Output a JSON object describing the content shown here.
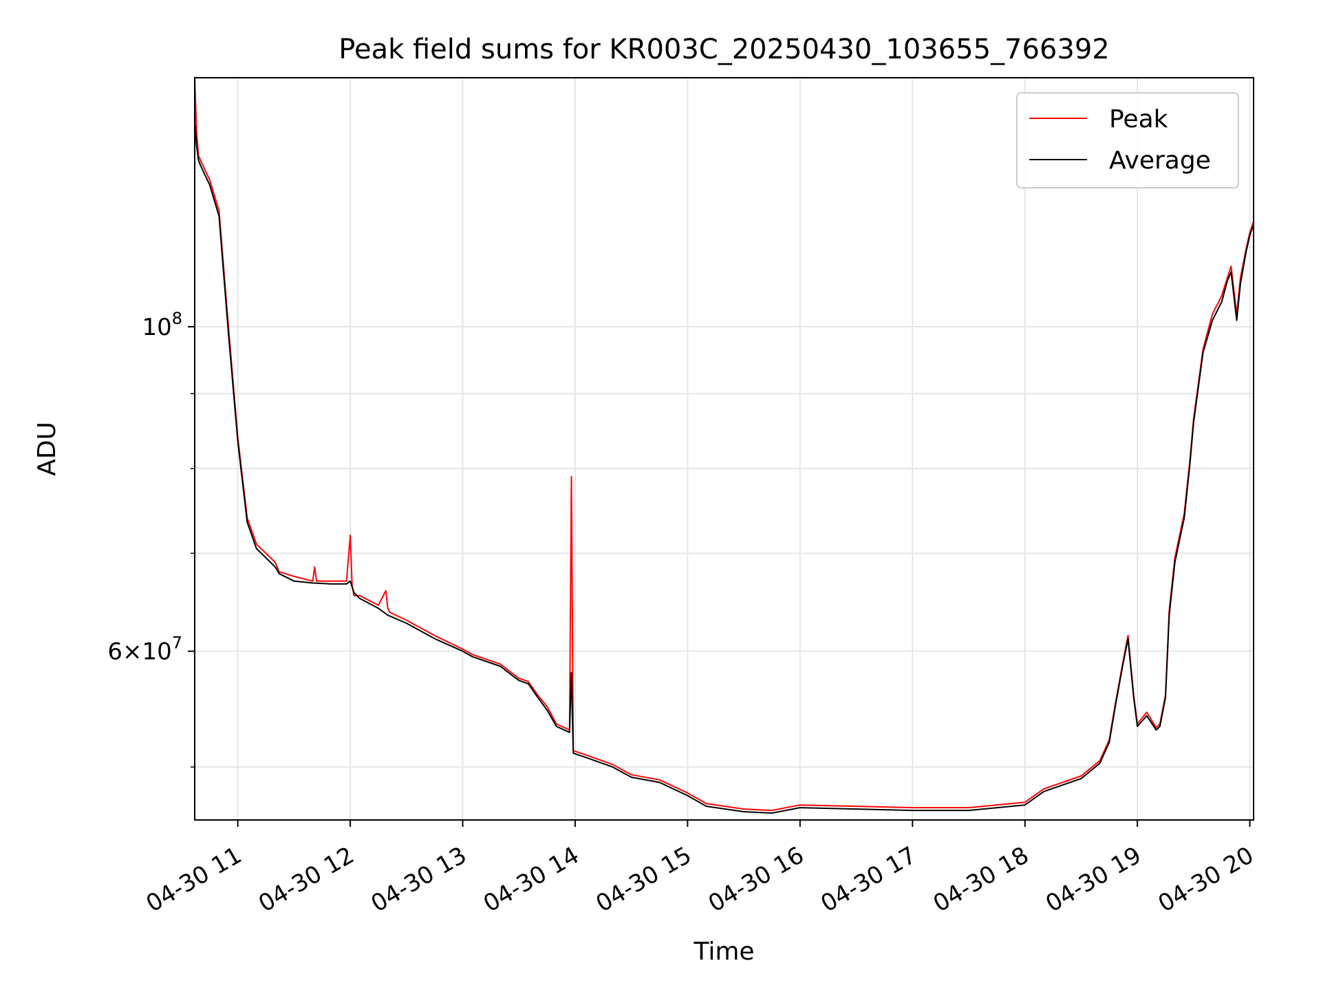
{
  "chart_data": {
    "type": "line",
    "title": "Peak field sums for KR003C_20250430_103655_766392",
    "xlabel": "Time",
    "ylabel": "ADU",
    "y_scale": "log",
    "grid": true,
    "legend_position": "top-right",
    "xlim": [
      "2025-04-30 10:37",
      "2025-04-30 20:02"
    ],
    "ylim": [
      46000000,
      148000000
    ],
    "x_ticks": [
      {
        "value": "2025-04-30 11:00",
        "label": "04-30 11"
      },
      {
        "value": "2025-04-30 12:00",
        "label": "04-30 12"
      },
      {
        "value": "2025-04-30 13:00",
        "label": "04-30 13"
      },
      {
        "value": "2025-04-30 14:00",
        "label": "04-30 14"
      },
      {
        "value": "2025-04-30 15:00",
        "label": "04-30 15"
      },
      {
        "value": "2025-04-30 16:00",
        "label": "04-30 16"
      },
      {
        "value": "2025-04-30 17:00",
        "label": "04-30 17"
      },
      {
        "value": "2025-04-30 18:00",
        "label": "04-30 18"
      },
      {
        "value": "2025-04-30 19:00",
        "label": "04-30 19"
      },
      {
        "value": "2025-04-30 20:00",
        "label": "04-30 20"
      }
    ],
    "y_major_ticks": [
      {
        "value": 100000000,
        "base": "10",
        "exp": "8"
      },
      {
        "value": 60000000,
        "mantissa": "6",
        "base": "10",
        "exp": "7"
      }
    ],
    "y_minor_ticks": [
      50000000,
      70000000,
      80000000,
      90000000
    ],
    "series": [
      {
        "name": "Peak",
        "color": "#ff0000",
        "x": [
          "2025-04-30 10:37",
          "2025-04-30 10:38",
          "2025-04-30 10:39",
          "2025-04-30 10:40",
          "2025-04-30 10:45",
          "2025-04-30 10:50",
          "2025-04-30 10:55",
          "2025-04-30 11:00",
          "2025-04-30 11:05",
          "2025-04-30 11:10",
          "2025-04-30 11:15",
          "2025-04-30 11:20",
          "2025-04-30 11:22",
          "2025-04-30 11:30",
          "2025-04-30 11:40",
          "2025-04-30 11:41",
          "2025-04-30 11:42",
          "2025-04-30 11:50",
          "2025-04-30 11:58",
          "2025-04-30 12:00",
          "2025-04-30 12:01",
          "2025-04-30 12:02",
          "2025-04-30 12:05",
          "2025-04-30 12:15",
          "2025-04-30 12:19",
          "2025-04-30 12:20",
          "2025-04-30 12:21",
          "2025-04-30 12:30",
          "2025-04-30 12:45",
          "2025-04-30 13:00",
          "2025-04-30 13:05",
          "2025-04-30 13:20",
          "2025-04-30 13:30",
          "2025-04-30 13:35",
          "2025-04-30 13:40",
          "2025-04-30 13:45",
          "2025-04-30 13:50",
          "2025-04-30 13:57",
          "2025-04-30 13:58",
          "2025-04-30 13:59",
          "2025-04-30 14:05",
          "2025-04-30 14:20",
          "2025-04-30 14:30",
          "2025-04-30 14:45",
          "2025-04-30 15:00",
          "2025-04-30 15:10",
          "2025-04-30 15:30",
          "2025-04-30 15:45",
          "2025-04-30 16:00",
          "2025-04-30 16:30",
          "2025-04-30 17:00",
          "2025-04-30 17:30",
          "2025-04-30 18:00",
          "2025-04-30 18:10",
          "2025-04-30 18:30",
          "2025-04-30 18:40",
          "2025-04-30 18:45",
          "2025-04-30 18:48",
          "2025-04-30 18:52",
          "2025-04-30 18:55",
          "2025-04-30 18:58",
          "2025-04-30 19:00",
          "2025-04-30 19:05",
          "2025-04-30 19:10",
          "2025-04-30 19:12",
          "2025-04-30 19:15",
          "2025-04-30 19:17",
          "2025-04-30 19:20",
          "2025-04-30 19:23",
          "2025-04-30 19:25",
          "2025-04-30 19:28",
          "2025-04-30 19:30",
          "2025-04-30 19:35",
          "2025-04-30 19:40",
          "2025-04-30 19:45",
          "2025-04-30 19:48",
          "2025-04-30 19:50",
          "2025-04-30 19:53",
          "2025-04-30 19:55",
          "2025-04-30 19:58",
          "2025-04-30 20:00",
          "2025-04-30 20:02"
        ],
        "values": [
          148000000,
          136000000,
          131000000,
          130000000,
          126000000,
          120000000,
          100000000,
          84000000,
          74000000,
          71000000,
          70000000,
          69000000,
          68000000,
          67500000,
          67000000,
          68500000,
          67000000,
          67000000,
          67000000,
          72000000,
          66500000,
          65500000,
          65500000,
          64500000,
          66000000,
          64200000,
          63800000,
          63000000,
          61500000,
          60200000,
          59700000,
          58800000,
          57500000,
          57200000,
          56000000,
          55000000,
          53500000,
          53000000,
          79000000,
          51300000,
          51000000,
          50200000,
          49400000,
          49000000,
          48000000,
          47200000,
          46800000,
          46700000,
          47100000,
          47000000,
          46900000,
          46900000,
          47300000,
          48300000,
          49300000,
          50500000,
          52200000,
          55000000,
          58700000,
          61500000,
          56000000,
          53500000,
          54500000,
          53200000,
          53500000,
          56000000,
          64000000,
          69500000,
          72500000,
          74500000,
          81000000,
          86500000,
          96500000,
          102000000,
          105000000,
          108000000,
          110000000,
          102000000,
          108000000,
          113000000,
          116000000,
          118000000
        ]
      },
      {
        "name": "Average",
        "color": "#000000",
        "x": [
          "2025-04-30 10:37",
          "2025-04-30 10:38",
          "2025-04-30 10:39",
          "2025-04-30 10:40",
          "2025-04-30 10:45",
          "2025-04-30 10:50",
          "2025-04-30 10:55",
          "2025-04-30 11:00",
          "2025-04-30 11:05",
          "2025-04-30 11:10",
          "2025-04-30 11:15",
          "2025-04-30 11:20",
          "2025-04-30 11:22",
          "2025-04-30 11:30",
          "2025-04-30 11:40",
          "2025-04-30 11:50",
          "2025-04-30 11:58",
          "2025-04-30 12:00",
          "2025-04-30 12:02",
          "2025-04-30 12:05",
          "2025-04-30 12:15",
          "2025-04-30 12:20",
          "2025-04-30 12:30",
          "2025-04-30 12:45",
          "2025-04-30 13:00",
          "2025-04-30 13:05",
          "2025-04-30 13:20",
          "2025-04-30 13:30",
          "2025-04-30 13:35",
          "2025-04-30 13:40",
          "2025-04-30 13:45",
          "2025-04-30 13:50",
          "2025-04-30 13:57",
          "2025-04-30 13:58",
          "2025-04-30 13:59",
          "2025-04-30 14:05",
          "2025-04-30 14:20",
          "2025-04-30 14:30",
          "2025-04-30 14:45",
          "2025-04-30 15:00",
          "2025-04-30 15:10",
          "2025-04-30 15:30",
          "2025-04-30 15:45",
          "2025-04-30 16:00",
          "2025-04-30 16:30",
          "2025-04-30 17:00",
          "2025-04-30 17:30",
          "2025-04-30 18:00",
          "2025-04-30 18:10",
          "2025-04-30 18:30",
          "2025-04-30 18:40",
          "2025-04-30 18:45",
          "2025-04-30 18:48",
          "2025-04-30 18:52",
          "2025-04-30 18:55",
          "2025-04-30 18:58",
          "2025-04-30 19:00",
          "2025-04-30 19:05",
          "2025-04-30 19:10",
          "2025-04-30 19:12",
          "2025-04-30 19:15",
          "2025-04-30 19:17",
          "2025-04-30 19:20",
          "2025-04-30 19:23",
          "2025-04-30 19:25",
          "2025-04-30 19:28",
          "2025-04-30 19:30",
          "2025-04-30 19:35",
          "2025-04-30 19:40",
          "2025-04-30 19:45",
          "2025-04-30 19:48",
          "2025-04-30 19:50",
          "2025-04-30 19:53",
          "2025-04-30 19:55",
          "2025-04-30 19:58",
          "2025-04-30 20:00",
          "2025-04-30 20:02"
        ],
        "values": [
          138000000,
          133000000,
          130000000,
          129000000,
          125000000,
          119000000,
          99000000,
          83500000,
          73500000,
          70500000,
          69500000,
          68500000,
          67800000,
          67000000,
          66800000,
          66700000,
          66700000,
          67000000,
          65800000,
          65200000,
          64200000,
          63500000,
          62700000,
          61200000,
          60000000,
          59500000,
          58600000,
          57300000,
          57000000,
          55800000,
          54700000,
          53300000,
          52800000,
          58000000,
          51100000,
          50800000,
          50000000,
          49200000,
          48800000,
          47800000,
          47000000,
          46600000,
          46500000,
          46900000,
          46800000,
          46700000,
          46700000,
          47100000,
          48100000,
          49100000,
          50300000,
          52000000,
          54800000,
          58500000,
          61200000,
          55800000,
          53300000,
          54200000,
          53000000,
          53300000,
          55800000,
          63500000,
          69000000,
          72000000,
          74000000,
          80500000,
          86000000,
          96000000,
          101000000,
          104000000,
          107500000,
          109000000,
          101000000,
          107000000,
          112500000,
          115500000,
          117500000
        ]
      }
    ]
  }
}
